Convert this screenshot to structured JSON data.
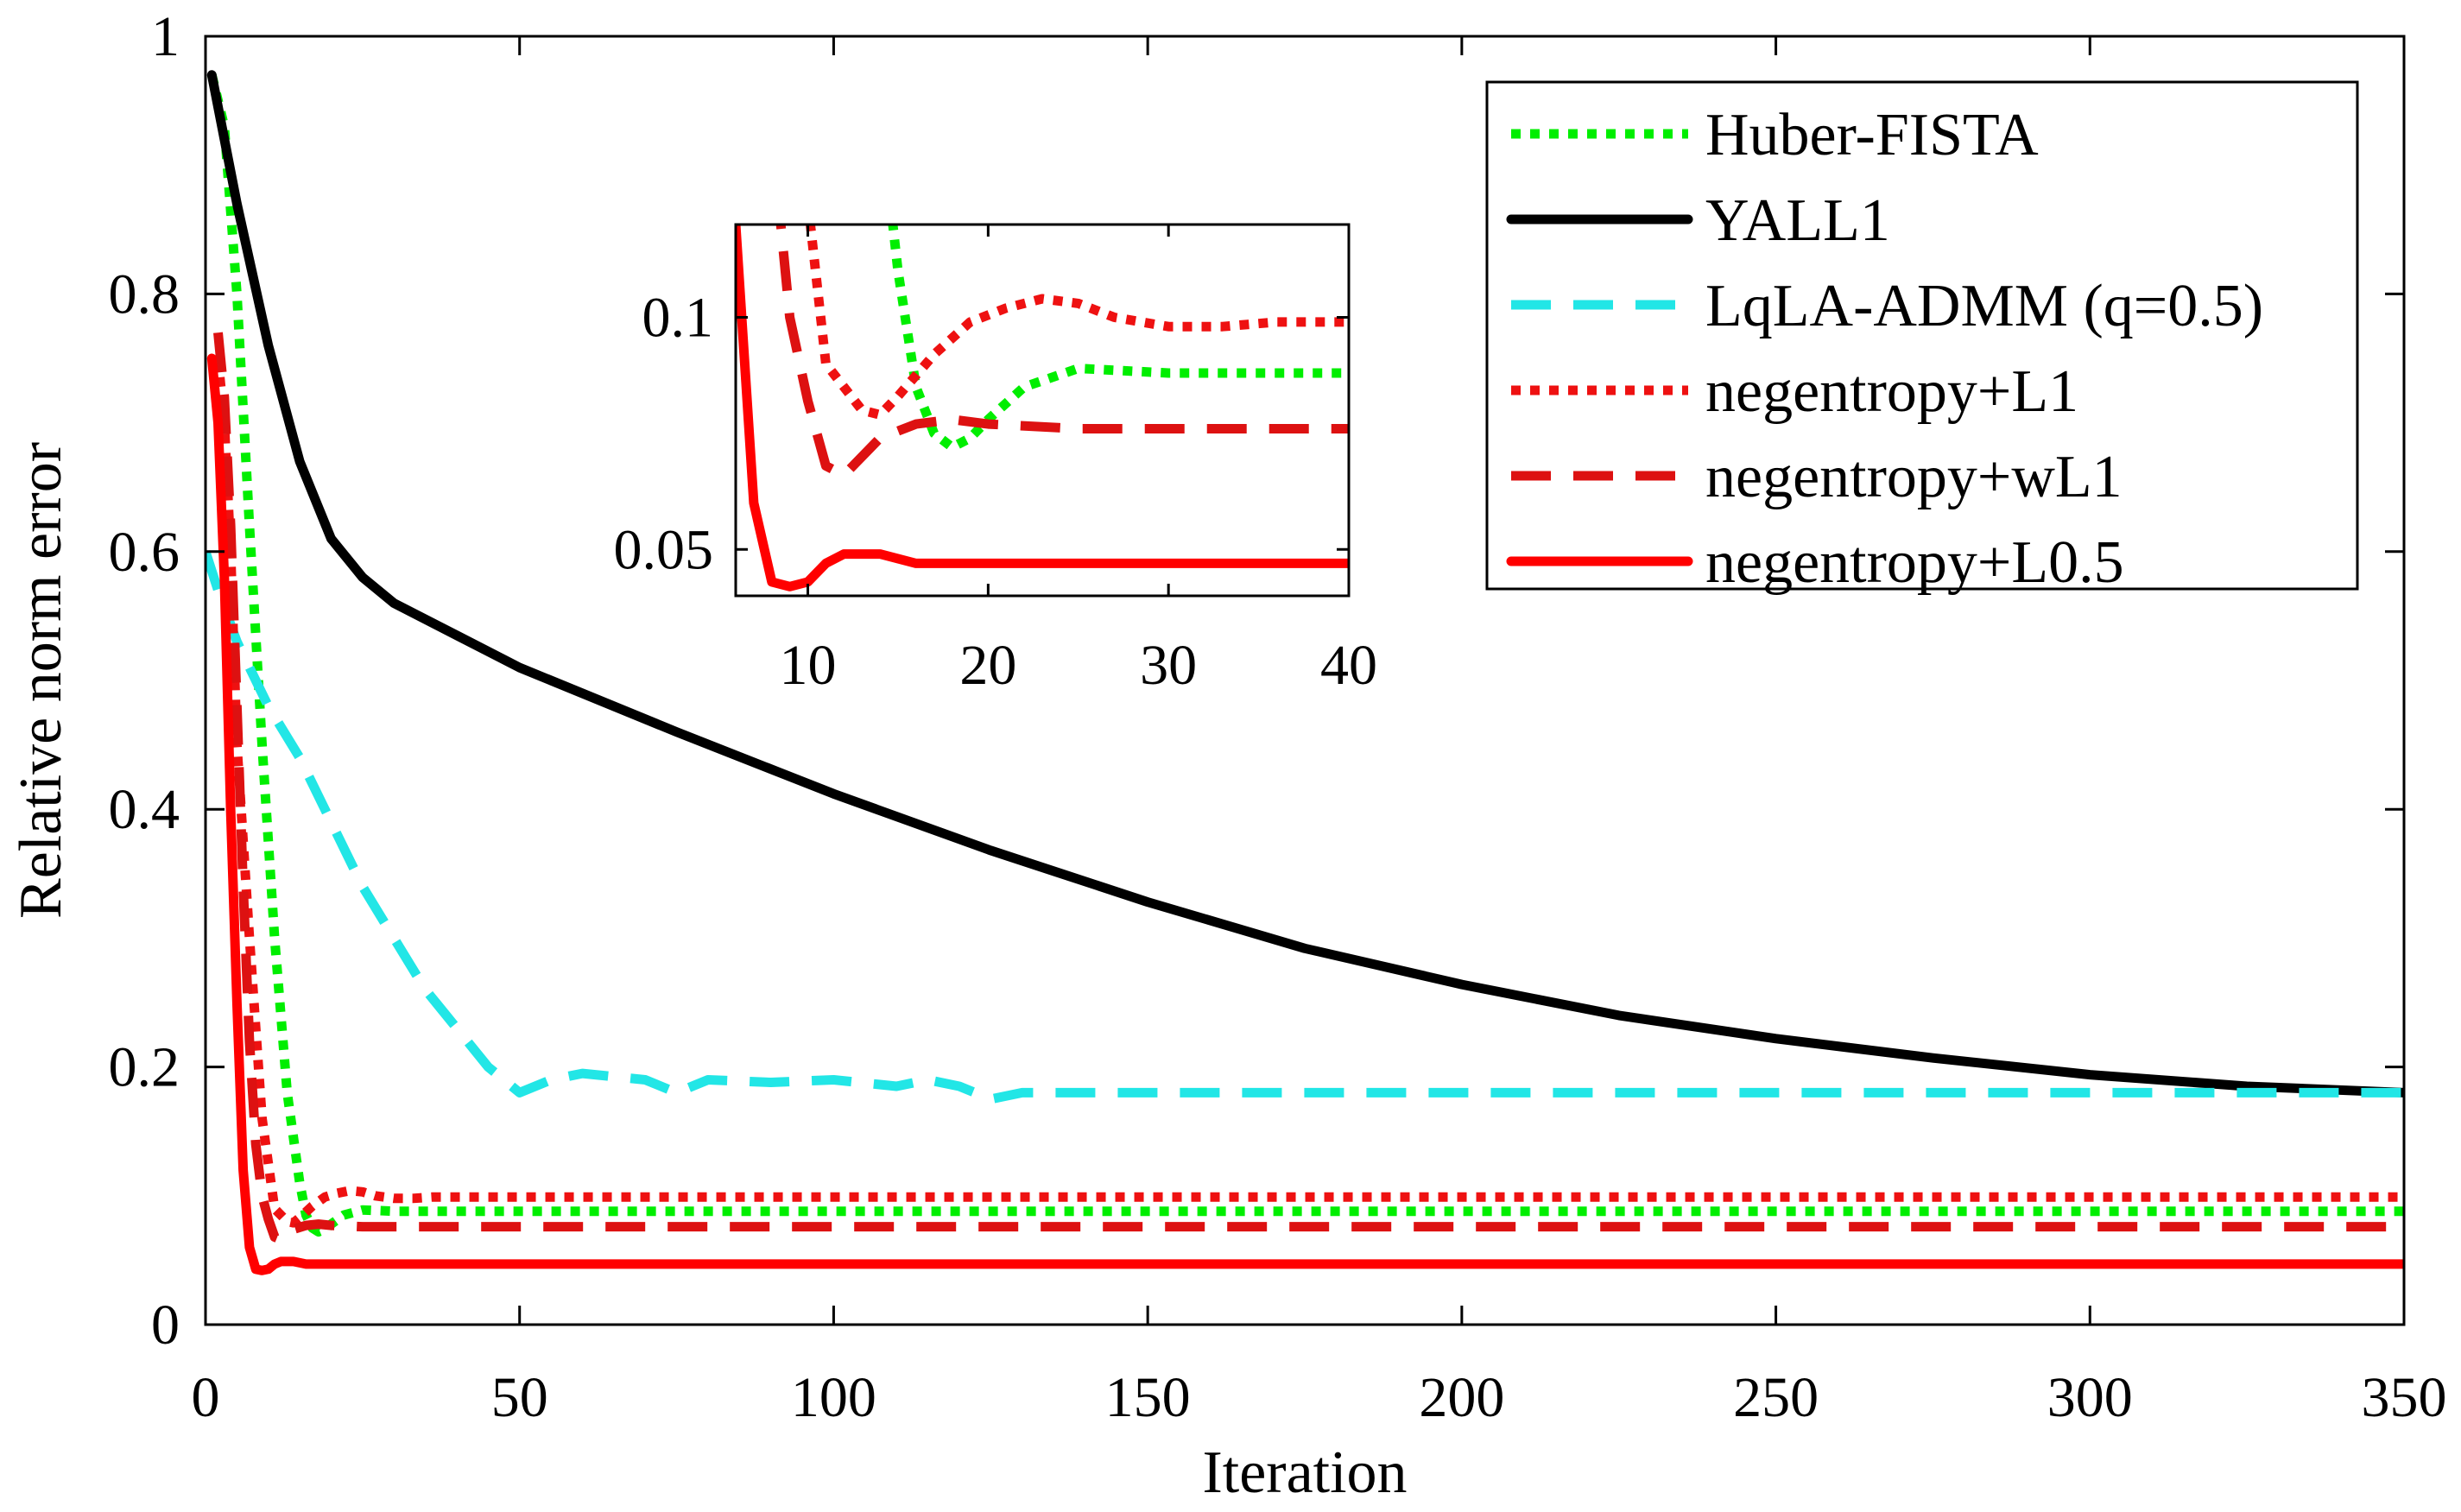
{
  "chart_data": {
    "type": "line",
    "title": "",
    "xlabel": "Iteration",
    "ylabel": "Relative norm error",
    "xlim": [
      0,
      350
    ],
    "ylim": [
      0,
      1
    ],
    "xticks": [
      0,
      50,
      100,
      150,
      200,
      250,
      300,
      350
    ],
    "yticks": [
      0,
      0.2,
      0.4,
      0.6,
      0.8,
      1
    ],
    "xtick_labels": [
      "0",
      "50",
      "100",
      "150",
      "200",
      "250",
      "300",
      "350"
    ],
    "ytick_labels": [
      "0",
      "0.2",
      "0.4",
      "0.6",
      "0.8",
      "1"
    ],
    "grid": false,
    "legend_position": "top-right",
    "series": [
      {
        "name": "Huber-FISTA",
        "color": "#00ee00",
        "style": "dotted",
        "x": [
          1,
          3,
          5,
          7,
          9,
          11,
          13,
          15,
          16,
          17,
          18,
          19,
          20,
          22,
          25,
          30,
          40,
          60,
          100,
          200,
          350
        ],
        "values": [
          0.97,
          0.93,
          0.8,
          0.62,
          0.45,
          0.3,
          0.18,
          0.11,
          0.085,
          0.075,
          0.072,
          0.074,
          0.078,
          0.085,
          0.089,
          0.088,
          0.088,
          0.088,
          0.088,
          0.088,
          0.088
        ]
      },
      {
        "name": "YALL1",
        "color": "#000000",
        "style": "solid",
        "x": [
          1,
          5,
          10,
          15,
          20,
          25,
          30,
          40,
          50,
          75,
          100,
          125,
          150,
          175,
          200,
          225,
          250,
          275,
          300,
          325,
          350
        ],
        "values": [
          0.97,
          0.87,
          0.76,
          0.67,
          0.61,
          0.58,
          0.56,
          0.535,
          0.51,
          0.46,
          0.412,
          0.368,
          0.328,
          0.292,
          0.264,
          0.24,
          0.222,
          0.207,
          0.194,
          0.185,
          0.18
        ]
      },
      {
        "name": "LqLA-ADMM (q=0.5)",
        "color": "#22e6e6",
        "style": "dashed",
        "x": [
          0,
          2,
          5,
          10,
          15,
          20,
          25,
          30,
          35,
          40,
          45,
          50,
          55,
          60,
          70,
          75,
          80,
          90,
          100,
          110,
          115,
          120,
          125,
          130,
          140,
          150,
          160,
          180,
          200,
          250,
          300,
          350
        ],
        "values": [
          0.6,
          0.57,
          0.53,
          0.48,
          0.44,
          0.39,
          0.34,
          0.3,
          0.26,
          0.23,
          0.2,
          0.18,
          0.19,
          0.195,
          0.19,
          0.18,
          0.19,
          0.188,
          0.19,
          0.185,
          0.19,
          0.185,
          0.175,
          0.18,
          0.18,
          0.18,
          0.18,
          0.18,
          0.18,
          0.18,
          0.18,
          0.18
        ]
      },
      {
        "name": "negentropy+L1",
        "color": "#ee1111",
        "style": "dotted",
        "x": [
          2,
          3,
          4,
          5,
          7,
          9,
          11,
          13,
          14,
          15,
          17,
          19,
          21,
          23,
          25,
          27,
          30,
          33,
          36,
          40,
          60,
          100,
          200,
          350
        ],
        "values": [
          0.75,
          0.7,
          0.6,
          0.45,
          0.3,
          0.16,
          0.09,
          0.08,
          0.079,
          0.083,
          0.092,
          0.099,
          0.102,
          0.104,
          0.103,
          0.1,
          0.098,
          0.098,
          0.099,
          0.099,
          0.099,
          0.099,
          0.099,
          0.099
        ]
      },
      {
        "name": "negentropy+wL1",
        "color": "#dd1111",
        "style": "dashed",
        "x": [
          2,
          3,
          4,
          5,
          6,
          7,
          8,
          9,
          10,
          11,
          12,
          14,
          16,
          18,
          20,
          25,
          30,
          40,
          100,
          200,
          350
        ],
        "values": [
          0.77,
          0.72,
          0.62,
          0.48,
          0.34,
          0.22,
          0.14,
          0.1,
          0.082,
          0.068,
          0.066,
          0.074,
          0.077,
          0.078,
          0.077,
          0.076,
          0.076,
          0.076,
          0.076,
          0.076,
          0.076
        ]
      },
      {
        "name": "negentropy+L0.5",
        "color": "#ff0000",
        "style": "solid",
        "x": [
          1,
          2,
          3,
          4,
          5,
          6,
          7,
          8,
          9,
          10,
          11,
          12,
          14,
          16,
          18,
          20,
          25,
          30,
          40,
          100,
          200,
          350
        ],
        "values": [
          0.75,
          0.7,
          0.58,
          0.4,
          0.25,
          0.12,
          0.06,
          0.043,
          0.042,
          0.043,
          0.047,
          0.049,
          0.049,
          0.047,
          0.047,
          0.047,
          0.047,
          0.047,
          0.047,
          0.047,
          0.047,
          0.047
        ]
      }
    ],
    "inset": {
      "xlim": [
        6,
        40
      ],
      "ylim": [
        0.04,
        0.12
      ],
      "xticks": [
        10,
        20,
        30,
        40
      ],
      "yticks": [
        0.05,
        0.1
      ],
      "xtick_labels": [
        "10",
        "20",
        "30",
        "40"
      ],
      "ytick_labels": [
        "0.05",
        "0.1"
      ]
    }
  }
}
